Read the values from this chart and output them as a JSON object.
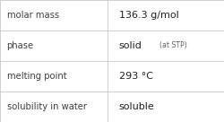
{
  "rows": [
    {
      "label": "molar mass",
      "value": "136.3 g/mol",
      "extra": ""
    },
    {
      "label": "phase",
      "value": "solid",
      "extra": "(at STP)"
    },
    {
      "label": "melting point",
      "value": "293 °C",
      "extra": ""
    },
    {
      "label": "solubility in water",
      "value": "soluble",
      "extra": ""
    }
  ],
  "col_split": 0.478,
  "bg_color": "#ffffff",
  "border_color": "#c8c8c8",
  "label_color": "#404040",
  "value_color": "#202020",
  "extra_color": "#606060",
  "label_fontsize": 7.2,
  "value_fontsize": 8.0,
  "extra_fontsize": 5.6,
  "figwidth": 2.51,
  "figheight": 1.36,
  "dpi": 100
}
